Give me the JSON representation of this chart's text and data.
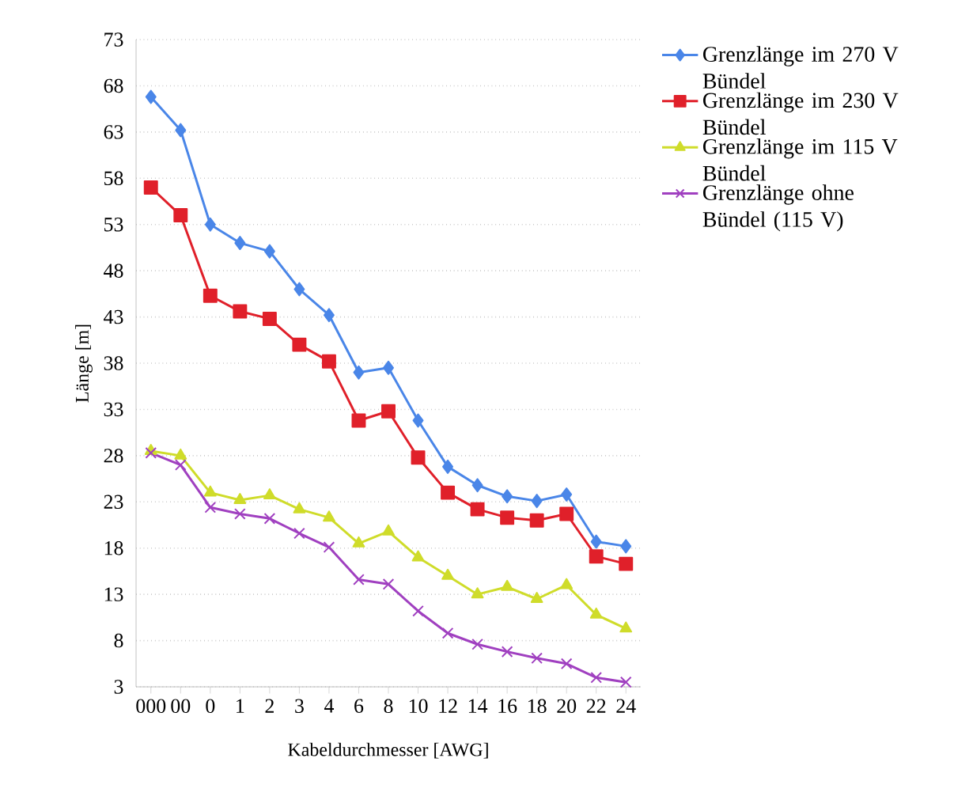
{
  "chart_data": {
    "type": "line",
    "xlabel": "Kabeldurchmesser [AWG]",
    "ylabel": "Länge [m]",
    "categories": [
      "000",
      "00",
      "0",
      "1",
      "2",
      "3",
      "4",
      "6",
      "8",
      "10",
      "12",
      "14",
      "16",
      "18",
      "20",
      "22",
      "24"
    ],
    "ylim": [
      3,
      73
    ],
    "yticks": [
      3,
      8,
      13,
      18,
      23,
      28,
      33,
      38,
      43,
      48,
      53,
      58,
      63,
      68,
      73
    ],
    "grid": "y",
    "legend": "right",
    "series": [
      {
        "name": "Grenzlänge im 270 V Bündel",
        "color": "#4a86e8",
        "marker": "diamond",
        "values": [
          66.8,
          63.2,
          53,
          51,
          50.1,
          46,
          43.2,
          37,
          37.5,
          31.8,
          26.8,
          24.8,
          23.6,
          23.1,
          23.8,
          18.7,
          18.2
        ]
      },
      {
        "name": "Grenzlänge im 230 V Bündel",
        "color": "#e0202a",
        "marker": "square",
        "values": [
          57,
          54,
          45.3,
          43.6,
          42.8,
          40,
          38.2,
          31.8,
          32.8,
          27.8,
          24,
          22.2,
          21.3,
          21,
          21.7,
          17.1,
          16.3
        ]
      },
      {
        "name": "Grenzlänge im 115 V Bündel",
        "color": "#cfdc2a",
        "marker": "triangle",
        "values": [
          28.5,
          28,
          24,
          23.2,
          23.7,
          22.2,
          21.3,
          18.5,
          19.8,
          17,
          15,
          13,
          13.8,
          12.5,
          14,
          10.8,
          9.3
        ]
      },
      {
        "name": "Grenzlänge ohne Bündel (115 V)",
        "color": "#a040c0",
        "marker": "cross",
        "values": [
          28.3,
          27,
          22.4,
          21.7,
          21.2,
          19.6,
          18.1,
          14.6,
          14.1,
          11.2,
          8.8,
          7.6,
          6.8,
          6.1,
          5.5,
          4,
          3.5
        ]
      }
    ]
  }
}
